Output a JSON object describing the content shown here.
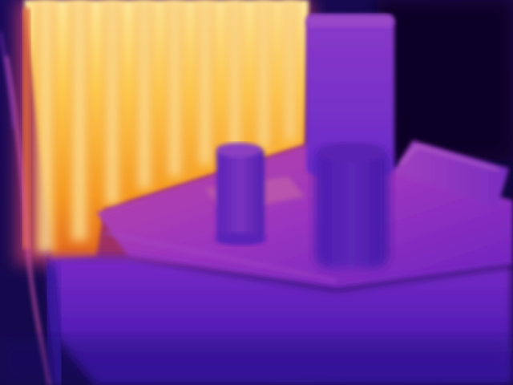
{
  "image": {
    "kind": "thermal camera photograph",
    "palette": {
      "coldest": "#12063a",
      "cold": "#2a12a8",
      "cool": "#5a1ec8",
      "mid": "#8a2ac0",
      "warm": "#d04a8a",
      "hot": "#f08a20",
      "hottest": "#fff3a0"
    },
    "objects": [
      {
        "name": "radiator-fins",
        "temperature_band": "hottest"
      },
      {
        "name": "table-top",
        "temperature_band": "mid"
      },
      {
        "name": "cylindrical-container",
        "temperature_band": "cool"
      },
      {
        "name": "tall-box",
        "temperature_band": "mid"
      },
      {
        "name": "dark-jar",
        "temperature_band": "cool"
      },
      {
        "name": "tray-right",
        "temperature_band": "mid"
      },
      {
        "name": "cable-left",
        "temperature_band": "warm"
      }
    ]
  }
}
